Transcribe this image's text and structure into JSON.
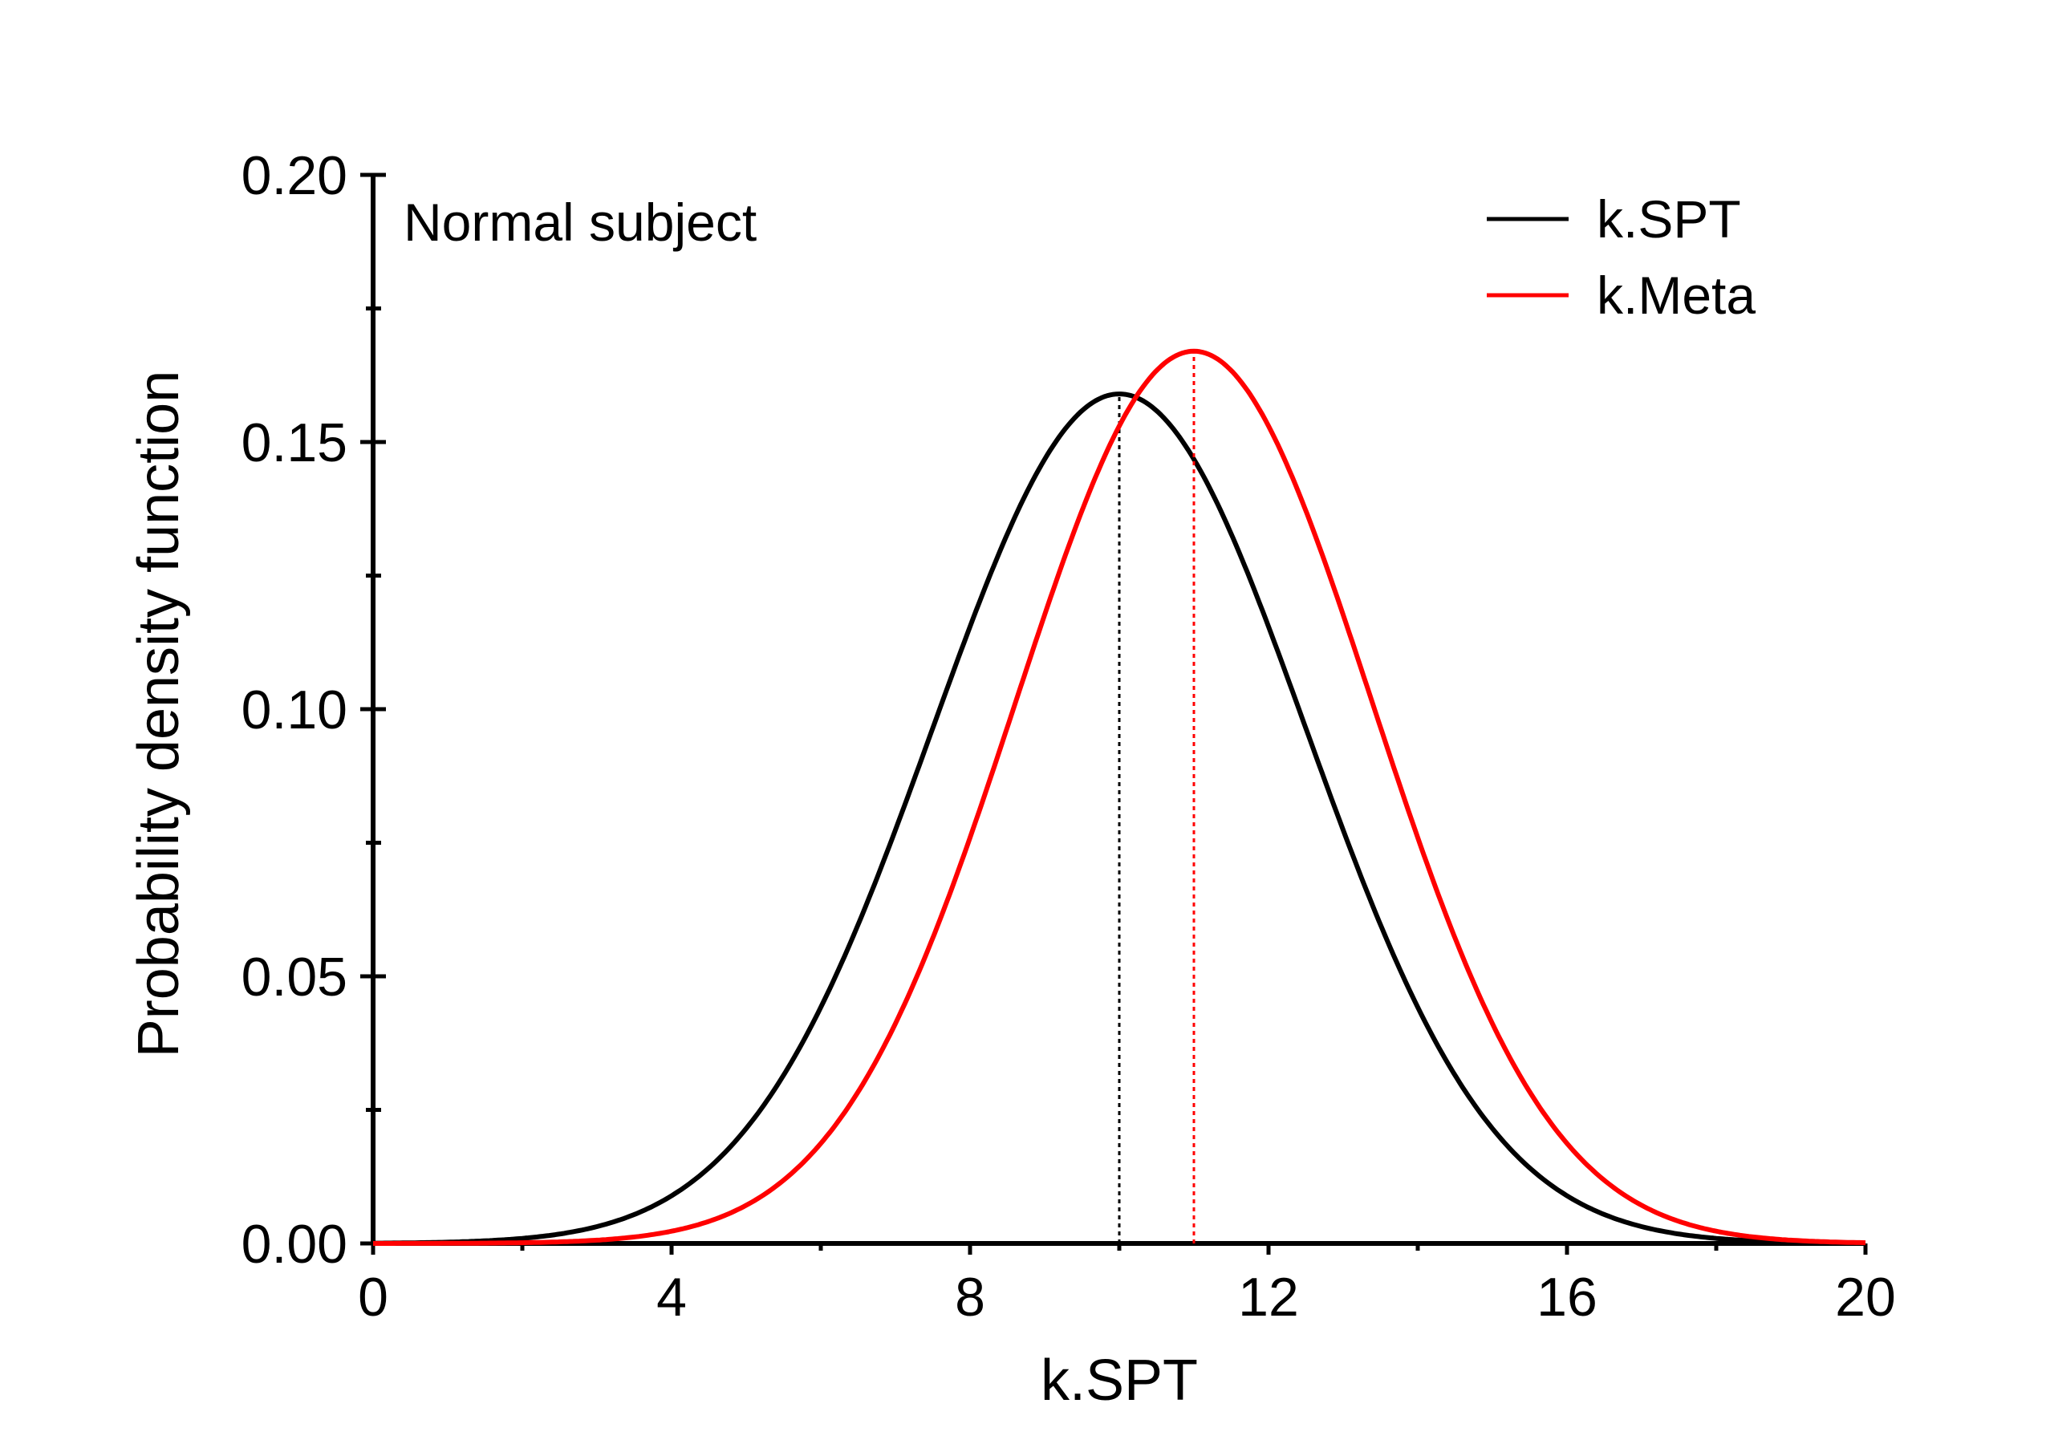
{
  "chart_data": {
    "type": "line",
    "title": "",
    "annotation": "Normal subject",
    "xlabel": "k.SPT",
    "ylabel": "Probability density function",
    "xlim": [
      0,
      20
    ],
    "ylim": [
      0,
      0.2
    ],
    "x_ticks": [
      "0",
      "4",
      "8",
      "12",
      "16",
      "20"
    ],
    "y_ticks": [
      "0.00",
      "0.05",
      "0.10",
      "0.15",
      "0.20"
    ],
    "legend_position": "top-right",
    "grid": false,
    "series": [
      {
        "name": "k.SPT",
        "color": "#000000",
        "distribution": "normal",
        "mean": 10.0,
        "sd": 2.5,
        "peak": 0.159,
        "mean_marker_line": true
      },
      {
        "name": "k.Meta",
        "color": "#ff0000",
        "distribution": "normal",
        "mean": 11.0,
        "sd": 2.39,
        "peak": 0.167,
        "mean_marker_line": true
      }
    ]
  }
}
